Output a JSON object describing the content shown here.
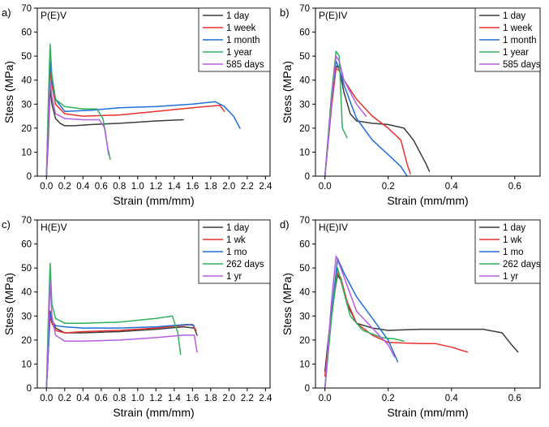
{
  "chart_data": [
    {
      "type": "line",
      "panel_label": "a)",
      "title": "P(E)V",
      "xlabel": "Strain (mm/mm)",
      "ylabel": "Stess (MPa)",
      "xlim": [
        -0.1,
        2.45
      ],
      "ylim": [
        0,
        70
      ],
      "xticks": [
        0.0,
        0.2,
        0.4,
        0.6,
        0.8,
        1.0,
        1.2,
        1.4,
        1.6,
        1.8,
        2.0,
        2.2,
        2.4
      ],
      "xtick_labels": [
        "0.0",
        "0.2",
        "0.4",
        "0.6",
        "0.8",
        "1.0",
        "1.2",
        "1.4",
        "1.6",
        "1.8",
        "2.0",
        "2.2",
        "2.4"
      ],
      "yticks": [
        0,
        10,
        20,
        30,
        40,
        50,
        60,
        70
      ],
      "ytick_labels": [
        "0",
        "10",
        "20",
        "30",
        "40",
        "50",
        "60",
        "70"
      ],
      "legend_position": "top-right",
      "series": [
        {
          "name": "1 day",
          "color": "#3c3c3c",
          "x": [
            0.0,
            0.02,
            0.04,
            0.06,
            0.1,
            0.15,
            0.2,
            0.3,
            0.5,
            0.8,
            1.0,
            1.2,
            1.5
          ],
          "y": [
            0,
            15,
            37,
            30,
            24,
            22,
            21,
            21,
            21.5,
            22,
            22.5,
            23,
            23.5
          ]
        },
        {
          "name": "1 week",
          "color": "#e8312f",
          "x": [
            0.0,
            0.02,
            0.04,
            0.06,
            0.1,
            0.2,
            0.4,
            0.8,
            1.2,
            1.6,
            1.9,
            1.95
          ],
          "y": [
            0,
            20,
            45,
            38,
            30,
            26,
            25,
            25.5,
            27,
            28.5,
            29.5,
            27
          ]
        },
        {
          "name": "1 month",
          "color": "#1f6fd6",
          "x": [
            0.0,
            0.02,
            0.04,
            0.06,
            0.1,
            0.2,
            0.5,
            0.8,
            1.2,
            1.6,
            1.85,
            1.95,
            2.05,
            2.12
          ],
          "y": [
            0,
            25,
            48,
            40,
            32,
            27,
            27.5,
            28.5,
            29,
            30,
            31,
            29,
            25,
            20
          ]
        },
        {
          "name": "1 year",
          "color": "#2eb15a",
          "x": [
            0.0,
            0.02,
            0.04,
            0.06,
            0.1,
            0.2,
            0.4,
            0.55,
            0.62,
            0.67,
            0.7
          ],
          "y": [
            0,
            30,
            55,
            42,
            32,
            29,
            28,
            28,
            24,
            12,
            7
          ]
        },
        {
          "name": "585 days",
          "color": "#b35ee0",
          "x": [
            0.0,
            0.02,
            0.04,
            0.06,
            0.1,
            0.2,
            0.4,
            0.58,
            0.64,
            0.68
          ],
          "y": [
            0,
            20,
            40,
            33,
            26,
            24,
            23.5,
            23.5,
            20,
            9
          ]
        }
      ]
    },
    {
      "type": "line",
      "panel_label": "b)",
      "title": "P(E)IV",
      "xlabel": "Strain (mm/mm)",
      "ylabel": "Stess (MPa)",
      "xlim": [
        -0.03,
        0.68
      ],
      "ylim": [
        0,
        70
      ],
      "xticks": [
        0.0,
        0.2,
        0.4,
        0.6
      ],
      "xtick_labels": [
        "0.0",
        "0.2",
        "0.4",
        "0.6"
      ],
      "yticks": [
        0,
        10,
        20,
        30,
        40,
        50,
        60,
        70
      ],
      "ytick_labels": [
        "0",
        "10",
        "20",
        "30",
        "40",
        "50",
        "60",
        "70"
      ],
      "legend_position": "top-right",
      "series": [
        {
          "name": "1 day",
          "color": "#3c3c3c",
          "x": [
            0.0,
            0.02,
            0.035,
            0.045,
            0.06,
            0.08,
            0.1,
            0.15,
            0.2,
            0.25,
            0.28,
            0.3,
            0.32,
            0.33
          ],
          "y": [
            0,
            28,
            46,
            45,
            35,
            26,
            23,
            22,
            21.5,
            20,
            15,
            10,
            5,
            2
          ]
        },
        {
          "name": "1 week",
          "color": "#e8312f",
          "x": [
            0.0,
            0.02,
            0.035,
            0.045,
            0.06,
            0.1,
            0.15,
            0.2,
            0.24,
            0.26,
            0.27
          ],
          "y": [
            0,
            28,
            45,
            44,
            40,
            32,
            25,
            20,
            15,
            5,
            1
          ]
        },
        {
          "name": "1 month",
          "color": "#1f6fd6",
          "x": [
            0.0,
            0.02,
            0.035,
            0.045,
            0.06,
            0.1,
            0.15,
            0.2,
            0.24,
            0.26
          ],
          "y": [
            0,
            30,
            48,
            45,
            38,
            24,
            15,
            9,
            4,
            0
          ]
        },
        {
          "name": "1 year",
          "color": "#2eb15a",
          "x": [
            0.0,
            0.02,
            0.035,
            0.045,
            0.05,
            0.055,
            0.07
          ],
          "y": [
            0,
            33,
            52,
            50,
            35,
            20,
            16
          ]
        },
        {
          "name": "585 days",
          "color": "#b35ee0",
          "x": [
            0.0,
            0.02,
            0.035,
            0.045,
            0.06,
            0.1,
            0.13
          ],
          "y": [
            0,
            30,
            50,
            48,
            40,
            30,
            25
          ]
        }
      ]
    },
    {
      "type": "line",
      "panel_label": "c)",
      "title": "H(E)V",
      "xlabel": "Strain (mm/mm)",
      "ylabel": "Stess (MPa)",
      "xlim": [
        -0.1,
        2.45
      ],
      "ylim": [
        0,
        70
      ],
      "xticks": [
        0.0,
        0.2,
        0.4,
        0.6,
        0.8,
        1.0,
        1.2,
        1.4,
        1.6,
        1.8,
        2.0,
        2.2,
        2.4
      ],
      "xtick_labels": [
        "0.0",
        "0.2",
        "0.4",
        "0.6",
        "0.8",
        "1.0",
        "1.2",
        "1.4",
        "1.6",
        "1.8",
        "2.0",
        "2.2",
        "2.4"
      ],
      "yticks": [
        0,
        10,
        20,
        30,
        40,
        50,
        60,
        70
      ],
      "ytick_labels": [
        "0",
        "10",
        "20",
        "30",
        "40",
        "50",
        "60",
        "70"
      ],
      "legend_position": "top-right",
      "series": [
        {
          "name": "1 day",
          "color": "#3c3c3c",
          "x": [
            0.0,
            0.02,
            0.04,
            0.06,
            0.1,
            0.2,
            0.4,
            0.8,
            1.2,
            1.5,
            1.62,
            1.65
          ],
          "y": [
            0,
            15,
            32,
            28,
            25,
            23,
            23,
            23.5,
            24.5,
            25.5,
            25,
            22
          ]
        },
        {
          "name": "1 wk",
          "color": "#e8312f",
          "x": [
            0.0,
            0.02,
            0.04,
            0.06,
            0.1,
            0.2,
            0.4,
            0.8,
            1.2,
            1.6,
            1.64
          ],
          "y": [
            0,
            15,
            30,
            27,
            24,
            23,
            23.5,
            24,
            25,
            26.5,
            24
          ]
        },
        {
          "name": "1 mo",
          "color": "#1f6fd6",
          "x": [
            0.0,
            0.02,
            0.04,
            0.06,
            0.1,
            0.2,
            0.4,
            0.8,
            1.2,
            1.55,
            1.62
          ],
          "y": [
            0,
            15,
            31,
            28,
            26,
            25.5,
            25,
            25,
            25.5,
            26.5,
            26
          ]
        },
        {
          "name": "262 days",
          "color": "#2eb15a",
          "x": [
            0.0,
            0.02,
            0.04,
            0.06,
            0.1,
            0.2,
            0.4,
            0.8,
            1.2,
            1.38,
            1.44,
            1.47
          ],
          "y": [
            0,
            28,
            52,
            35,
            29,
            27,
            27,
            27.5,
            29,
            30,
            23,
            14
          ]
        },
        {
          "name": "1 yr",
          "color": "#b35ee0",
          "x": [
            0.0,
            0.02,
            0.04,
            0.06,
            0.1,
            0.2,
            0.4,
            0.8,
            1.2,
            1.5,
            1.62,
            1.65
          ],
          "y": [
            0,
            20,
            45,
            30,
            22,
            19.5,
            19.5,
            20,
            21,
            22,
            22,
            15
          ]
        }
      ]
    },
    {
      "type": "line",
      "panel_label": "d)",
      "title": "H(E)IV",
      "xlabel": "Strain (mm/mm)",
      "ylabel": "Stess (MPa)",
      "xlim": [
        -0.03,
        0.68
      ],
      "ylim": [
        0,
        70
      ],
      "xticks": [
        0.0,
        0.2,
        0.4,
        0.6
      ],
      "xtick_labels": [
        "0.0",
        "0.2",
        "0.4",
        "0.6"
      ],
      "yticks": [
        0,
        10,
        20,
        30,
        40,
        50,
        60,
        70
      ],
      "ytick_labels": [
        "0",
        "10",
        "20",
        "30",
        "40",
        "50",
        "60",
        "70"
      ],
      "legend_position": "top-right",
      "series": [
        {
          "name": "1 day",
          "color": "#3c3c3c",
          "x": [
            0.0,
            0.02,
            0.04,
            0.05,
            0.07,
            0.1,
            0.15,
            0.2,
            0.3,
            0.4,
            0.5,
            0.56,
            0.59,
            0.61
          ],
          "y": [
            7,
            32,
            47,
            45,
            35,
            27,
            25,
            24,
            24.5,
            24.5,
            24.5,
            23,
            18,
            15
          ]
        },
        {
          "name": "1 wk",
          "color": "#e8312f",
          "x": [
            0.0,
            0.02,
            0.04,
            0.05,
            0.07,
            0.1,
            0.15,
            0.2,
            0.3,
            0.35,
            0.4,
            0.45
          ],
          "y": [
            5,
            30,
            48,
            46,
            36,
            27,
            22,
            19,
            18.5,
            18.5,
            17,
            15
          ]
        },
        {
          "name": "1 mo",
          "color": "#1f6fd6",
          "x": [
            0.0,
            0.02,
            0.04,
            0.06,
            0.1,
            0.15,
            0.2,
            0.23
          ],
          "y": [
            0,
            30,
            54,
            48,
            38,
            29,
            20,
            11
          ]
        },
        {
          "name": "262 days",
          "color": "#2eb15a",
          "x": [
            0.0,
            0.02,
            0.04,
            0.05,
            0.08,
            0.12,
            0.18,
            0.22,
            0.25
          ],
          "y": [
            0,
            28,
            50,
            45,
            30,
            24,
            21,
            20.5,
            19.5
          ]
        },
        {
          "name": "1 yr",
          "color": "#b35ee0",
          "x": [
            0.0,
            0.02,
            0.035,
            0.05,
            0.1,
            0.15,
            0.2,
            0.22
          ],
          "y": [
            0,
            35,
            55,
            50,
            32,
            25,
            18,
            13
          ]
        }
      ]
    }
  ]
}
